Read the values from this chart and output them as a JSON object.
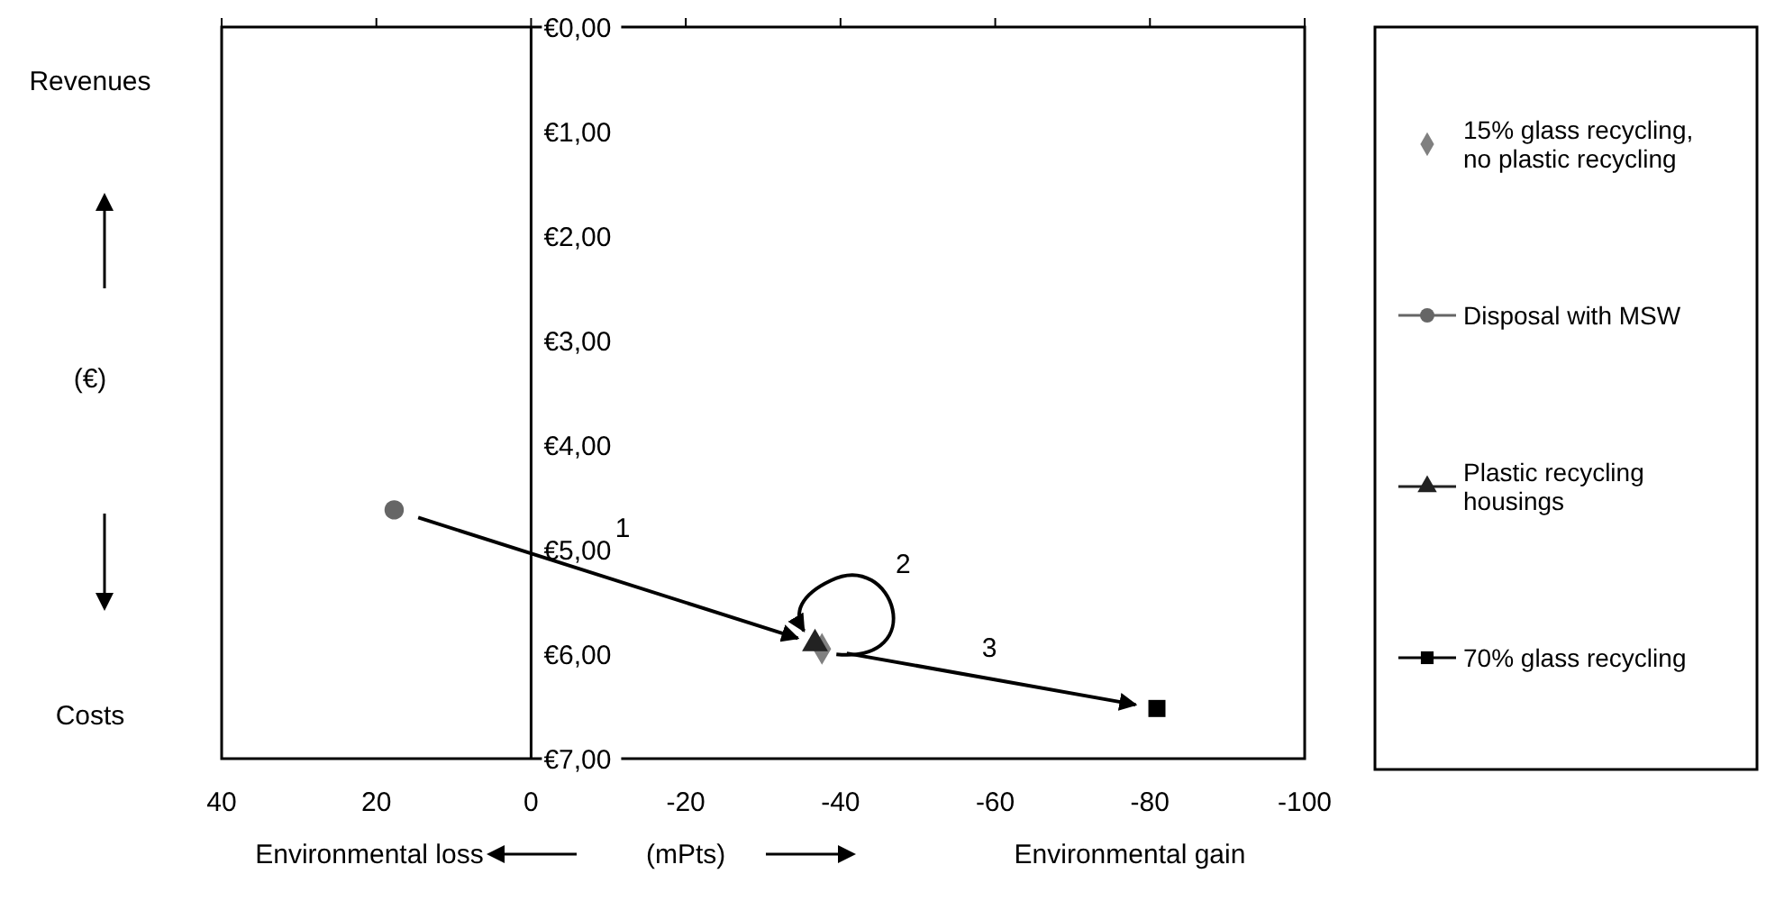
{
  "chart_data": {
    "type": "scatter",
    "xlabel": "(mPts)",
    "ylabel": "(€)",
    "xlim": [
      40,
      -100
    ],
    "xticks": [
      40,
      20,
      0,
      -20,
      -40,
      -60,
      -80,
      -100
    ],
    "ylim": [
      7,
      0
    ],
    "yticks": [
      {
        "value": 0,
        "label": "€0,00"
      },
      {
        "value": 1,
        "label": "€1,00"
      },
      {
        "value": 2,
        "label": "€2,00"
      },
      {
        "value": 3,
        "label": "€3,00"
      },
      {
        "value": 4,
        "label": "€4,00"
      },
      {
        "value": 5,
        "label": "€5,00"
      },
      {
        "value": 6,
        "label": "€6,00"
      },
      {
        "value": 7,
        "label": "€7,00"
      }
    ],
    "legend": "right",
    "grid": false,
    "series": [
      {
        "name": "15% glass recycling, no plastic recycling",
        "marker": "diamond",
        "color": "#808080",
        "x": [
          -37.6
        ],
        "values": [
          5.95
        ]
      },
      {
        "name": "Disposal with MSW",
        "type": "line",
        "marker": "circle",
        "color": "#666666",
        "x": [
          17.7
        ],
        "values": [
          4.62
        ]
      },
      {
        "name": "Plastic recycling housings",
        "type": "line",
        "marker": "triangle",
        "color": "#222222",
        "x": [
          -36.7
        ],
        "values": [
          5.9
        ]
      },
      {
        "name": "70% glass recycling",
        "type": "line",
        "marker": "square",
        "color": "#000000",
        "x": [
          -80.9
        ],
        "values": [
          6.52
        ]
      }
    ],
    "annotations": [
      "Revenues",
      "Costs",
      "Environmental loss",
      "Environmental gain",
      "1",
      "2",
      "3"
    ]
  }
}
